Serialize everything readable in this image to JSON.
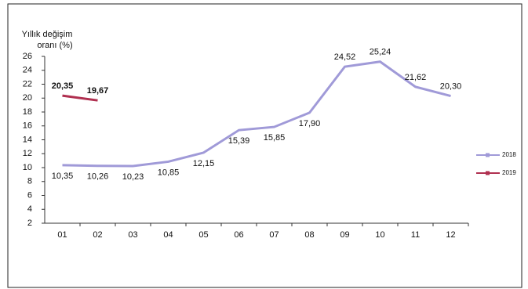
{
  "chart_data": {
    "type": "line",
    "y_label_lines": [
      "Yıllık  değişim",
      "oranı (%)"
    ],
    "categories": [
      "01",
      "02",
      "03",
      "04",
      "05",
      "06",
      "07",
      "08",
      "09",
      "10",
      "11",
      "12"
    ],
    "series": [
      {
        "name": "2018",
        "color": "#a09ad8",
        "values": [
          10.35,
          10.26,
          10.23,
          10.85,
          12.15,
          15.39,
          15.85,
          17.9,
          24.52,
          25.24,
          21.62,
          20.3
        ],
        "value_labels": [
          "10,35",
          "10,26",
          "10,23",
          "10,85",
          "12,15",
          "15,39",
          "15,85",
          "17,90",
          "24,52",
          "25,24",
          "21,62",
          "20,30"
        ]
      },
      {
        "name": "2019",
        "color": "#b03050",
        "values": [
          20.35,
          19.67,
          null,
          null,
          null,
          null,
          null,
          null,
          null,
          null,
          null,
          null
        ],
        "value_labels": [
          "20,35",
          "19,67",
          null,
          null,
          null,
          null,
          null,
          null,
          null,
          null,
          null,
          null
        ]
      }
    ],
    "ylim": [
      2,
      26
    ],
    "yticks": [
      2,
      4,
      6,
      8,
      10,
      12,
      14,
      16,
      18,
      20,
      22,
      24,
      26
    ]
  }
}
